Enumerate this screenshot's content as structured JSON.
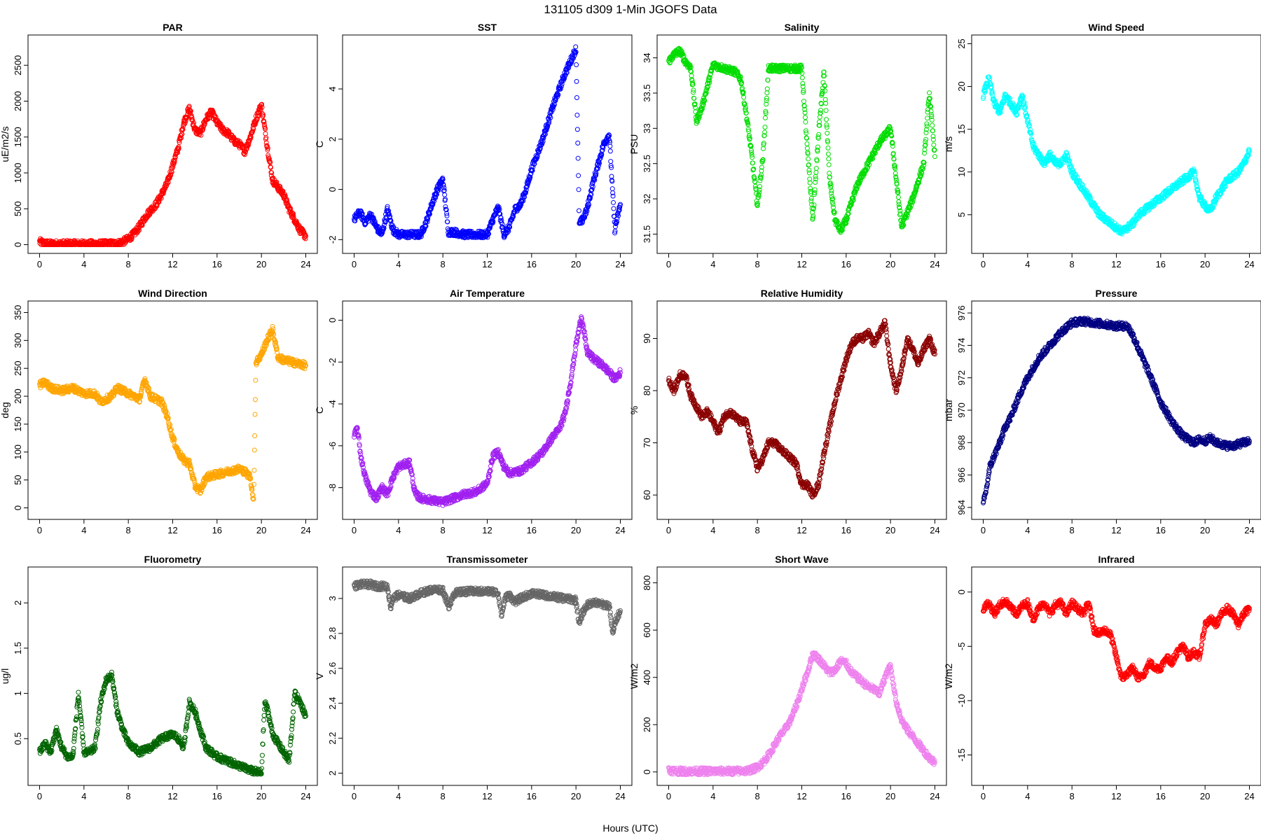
{
  "figure": {
    "title": "131105   d309   1-Min  JGOFS Data",
    "xlabel": "Hours (UTC)"
  },
  "chart_data": [
    {
      "type": "scatter",
      "title": "PAR",
      "ylabel": "uE/m2/s",
      "color": "#ff0000",
      "xlim": [
        0,
        24
      ],
      "ylim": [
        0,
        2800
      ],
      "xticks": [
        0,
        4,
        8,
        12,
        16,
        20,
        24
      ],
      "yticks": [
        0,
        500,
        1000,
        1500,
        2000,
        2500
      ],
      "x": [
        0,
        0.5,
        1,
        2,
        3,
        4,
        5,
        6,
        7,
        7.5,
        8,
        8.5,
        9,
        9.5,
        10,
        10.5,
        11,
        11.5,
        12,
        12.5,
        13,
        13.5,
        14,
        14.5,
        15,
        15.5,
        16,
        16.5,
        17,
        17.5,
        18,
        18.5,
        19,
        19.5,
        20,
        20.5,
        21,
        21.5,
        22,
        22.5,
        23,
        23.5,
        24
      ],
      "y": [
        40,
        15,
        10,
        10,
        10,
        10,
        10,
        10,
        15,
        40,
        80,
        150,
        250,
        380,
        480,
        560,
        700,
        850,
        1100,
        1350,
        1700,
        1900,
        1600,
        1550,
        1750,
        1850,
        1700,
        1600,
        1550,
        1450,
        1400,
        1300,
        1500,
        1750,
        1950,
        1400,
        900,
        800,
        700,
        500,
        350,
        200,
        120
      ]
    },
    {
      "type": "scatter",
      "title": "SST",
      "ylabel": "C",
      "color": "#0000ff",
      "xlim": [
        0,
        24
      ],
      "ylim": [
        -2.2,
        5.8
      ],
      "xticks": [
        0,
        4,
        8,
        12,
        16,
        20,
        24
      ],
      "yticks": [
        -2,
        0,
        2,
        4
      ],
      "x": [
        0,
        0.5,
        1,
        1.5,
        2,
        2.5,
        3,
        3.5,
        4,
        5,
        6,
        6.5,
        7,
        7.5,
        8,
        8.5,
        9,
        10,
        11,
        12,
        12.5,
        13,
        13.5,
        14,
        14.5,
        15,
        15.5,
        16,
        17,
        18,
        19,
        20,
        20.3,
        20.6,
        21,
        21.5,
        22,
        22.5,
        23,
        23.5,
        24
      ],
      "y": [
        -1.2,
        -0.9,
        -1.3,
        -1.0,
        -1.5,
        -1.8,
        -0.8,
        -1.6,
        -1.8,
        -1.8,
        -1.8,
        -1.3,
        -0.6,
        0.0,
        0.4,
        -1.7,
        -1.7,
        -1.8,
        -1.8,
        -1.8,
        -1.2,
        -0.7,
        -1.8,
        -1.5,
        -0.8,
        -0.6,
        0.0,
        0.8,
        2.0,
        3.4,
        4.6,
        5.6,
        -1.4,
        -1.2,
        -0.8,
        0.2,
        1.0,
        1.8,
        2.2,
        -1.6,
        -0.6
      ]
    },
    {
      "type": "scatter",
      "title": "Salinity",
      "ylabel": "PSU",
      "color": "#00dd00",
      "xlim": [
        0,
        24
      ],
      "ylim": [
        31.35,
        34.2
      ],
      "xticks": [
        0,
        4,
        8,
        12,
        16,
        20,
        24
      ],
      "yticks": [
        31.5,
        32.0,
        32.5,
        33.0,
        33.5,
        34.0
      ],
      "x": [
        0,
        0.5,
        1,
        1.5,
        2,
        2.5,
        3,
        3.5,
        4,
        5,
        6,
        6.5,
        7,
        7.5,
        8,
        8.5,
        9,
        10,
        11,
        12,
        12.5,
        13,
        13.5,
        14,
        14.5,
        15,
        15.5,
        16,
        17,
        18,
        19,
        20,
        20.5,
        21,
        21.5,
        22,
        23,
        23.5,
        24
      ],
      "y": [
        33.95,
        34.05,
        34.1,
        33.95,
        33.85,
        33.1,
        33.3,
        33.6,
        33.9,
        33.85,
        33.8,
        33.7,
        33.2,
        32.6,
        31.9,
        32.6,
        33.85,
        33.85,
        33.85,
        33.85,
        32.7,
        31.7,
        32.9,
        33.8,
        32.3,
        31.7,
        31.55,
        31.7,
        32.2,
        32.5,
        32.8,
        33.0,
        32.3,
        31.6,
        31.8,
        32.0,
        32.5,
        33.5,
        32.6
      ]
    },
    {
      "type": "scatter",
      "title": "Wind Speed",
      "ylabel": "m/s",
      "color": "#00ffff",
      "xlim": [
        0,
        24
      ],
      "ylim": [
        1.5,
        25
      ],
      "xticks": [
        0,
        4,
        8,
        12,
        16,
        20,
        24
      ],
      "yticks": [
        5,
        10,
        15,
        20,
        25
      ],
      "x": [
        0,
        0.5,
        1,
        1.5,
        2,
        2.5,
        3,
        3.5,
        4,
        4.5,
        5,
        5.5,
        6,
        6.5,
        7,
        7.5,
        8,
        8.5,
        9,
        9.5,
        10,
        10.5,
        11,
        11.5,
        12,
        12.5,
        13,
        13.5,
        14,
        15,
        16,
        17,
        18,
        18.5,
        19,
        19.5,
        20,
        20.5,
        21,
        21.5,
        22,
        22.5,
        23,
        23.5,
        24
      ],
      "y": [
        19,
        21,
        18,
        17,
        19,
        18,
        17,
        19,
        16,
        13,
        12,
        11,
        12,
        11,
        11,
        12,
        10,
        9,
        8,
        7,
        6,
        5,
        4.5,
        4,
        3.5,
        3,
        3.5,
        4,
        5,
        6,
        7,
        8,
        9,
        9.5,
        10,
        7,
        6,
        5.5,
        7,
        8,
        9,
        9.5,
        10,
        11,
        12.5
      ]
    },
    {
      "type": "scatter",
      "title": "Wind Direction",
      "ylabel": "deg",
      "color": "#ffa500",
      "xlim": [
        0,
        24
      ],
      "ylim": [
        -5,
        355
      ],
      "xticks": [
        0,
        4,
        8,
        12,
        16,
        20,
        24
      ],
      "yticks": [
        0,
        50,
        100,
        150,
        200,
        250,
        300,
        350
      ],
      "x": [
        0,
        0.5,
        1,
        2,
        3,
        4,
        5,
        5.5,
        6,
        6.5,
        7,
        7.5,
        8,
        8.5,
        9,
        9.5,
        10,
        10.5,
        11,
        11.5,
        12,
        12.5,
        13,
        13.5,
        14,
        14.5,
        15,
        16,
        17,
        18,
        18.5,
        19,
        19.3,
        19.5,
        20,
        20.5,
        21,
        21.5,
        22,
        23,
        24
      ],
      "y": [
        220,
        225,
        215,
        210,
        215,
        205,
        205,
        190,
        195,
        200,
        215,
        210,
        205,
        200,
        195,
        230,
        200,
        195,
        190,
        165,
        125,
        100,
        85,
        80,
        40,
        30,
        55,
        60,
        65,
        70,
        65,
        55,
        10,
        260,
        275,
        300,
        320,
        270,
        265,
        260,
        255
      ]
    },
    {
      "type": "scatter",
      "title": "Air Temperature",
      "ylabel": "C",
      "color": "#a020f0",
      "xlim": [
        0,
        24
      ],
      "ylim": [
        -9.1,
        0.5
      ],
      "xticks": [
        0,
        4,
        8,
        12,
        16,
        20,
        24
      ],
      "yticks": [
        -8,
        -6,
        -4,
        -2,
        0
      ],
      "x": [
        0,
        0.3,
        0.6,
        1,
        1.5,
        2,
        2.5,
        3,
        3.5,
        4,
        5,
        5.5,
        6,
        7,
        8,
        9,
        10,
        11,
        12,
        12.5,
        13,
        13.5,
        14,
        15,
        16,
        17,
        18,
        18.5,
        19,
        19.5,
        20,
        20.5,
        21,
        21.5,
        22,
        22.5,
        23,
        23.5,
        24
      ],
      "y": [
        -5.5,
        -5.2,
        -6.5,
        -7.5,
        -8.2,
        -8.5,
        -8.0,
        -8.3,
        -7.5,
        -7.0,
        -6.8,
        -8.3,
        -8.5,
        -8.6,
        -8.7,
        -8.5,
        -8.3,
        -8.2,
        -7.8,
        -6.5,
        -6.3,
        -7.0,
        -7.3,
        -7.2,
        -6.8,
        -6.3,
        -5.5,
        -5.2,
        -4.5,
        -3.0,
        -1.2,
        0.2,
        -1.5,
        -1.8,
        -2.0,
        -2.2,
        -2.5,
        -2.8,
        -2.5
      ]
    },
    {
      "type": "scatter",
      "title": "Relative Humidity",
      "ylabel": "%",
      "color": "#8b0000",
      "xlim": [
        0,
        24
      ],
      "ylim": [
        57,
        95.5
      ],
      "xticks": [
        0,
        4,
        8,
        12,
        16,
        20,
        24
      ],
      "yticks": [
        60,
        70,
        80,
        90
      ],
      "x": [
        0,
        0.5,
        1,
        1.5,
        2,
        2.5,
        3,
        3.5,
        4,
        4.5,
        5,
        5.5,
        6,
        6.5,
        7,
        7.5,
        8,
        8.5,
        9,
        9.5,
        10,
        10.5,
        11,
        11.5,
        12,
        12.5,
        13,
        13.5,
        14,
        14.5,
        15,
        15.5,
        16,
        16.5,
        17,
        17.5,
        18,
        18.5,
        19,
        19.5,
        20,
        20.5,
        21,
        21.5,
        22,
        22.5,
        23,
        23.5,
        24
      ],
      "y": [
        82,
        80,
        83,
        83,
        79,
        77,
        75,
        76,
        74,
        72,
        75,
        76,
        75,
        74,
        74,
        69,
        65,
        67,
        70,
        70,
        69,
        68,
        67,
        66,
        62,
        62,
        60,
        62,
        68,
        73,
        78,
        82,
        86,
        89,
        90,
        90,
        91,
        89,
        91,
        93,
        85,
        80,
        84,
        90,
        88,
        85,
        88,
        90,
        87
      ]
    },
    {
      "type": "scatter",
      "title": "Pressure",
      "ylabel": "mbar",
      "color": "#000080",
      "xlim": [
        0,
        24
      ],
      "ylim": [
        963.8,
        976.2
      ],
      "xticks": [
        0,
        4,
        8,
        12,
        16,
        20,
        24
      ],
      "yticks": [
        964,
        966,
        968,
        970,
        972,
        974,
        976
      ],
      "x": [
        0,
        0.3,
        0.6,
        1,
        1.5,
        2,
        2.5,
        3,
        3.5,
        4,
        5,
        6,
        7,
        8,
        9,
        10,
        11,
        12,
        12.5,
        13,
        13.5,
        14,
        15,
        16,
        17,
        18,
        19,
        19.5,
        20,
        20.5,
        21,
        21.5,
        22,
        22.5,
        23,
        23.5,
        24
      ],
      "y": [
        964.2,
        965.2,
        966.5,
        967.2,
        968.0,
        969.0,
        969.6,
        970.5,
        971.3,
        972.0,
        973.2,
        974.0,
        974.8,
        975.4,
        975.5,
        975.4,
        975.3,
        975.2,
        975.2,
        975.2,
        974.6,
        973.8,
        972.2,
        970.5,
        969.3,
        968.4,
        968.0,
        968.2,
        968.1,
        968.3,
        968.0,
        967.9,
        967.8,
        967.8,
        967.9,
        968.0,
        968.1
      ]
    },
    {
      "type": "scatter",
      "title": "Fluorometry",
      "ylabel": "ug/l",
      "color": "#006400",
      "xlim": [
        0,
        24
      ],
      "ylim": [
        0.08,
        2.3
      ],
      "xticks": [
        0,
        4,
        8,
        12,
        16,
        20,
        24
      ],
      "yticks": [
        0.5,
        1.0,
        1.5,
        2.0
      ],
      "x": [
        0,
        0.5,
        1,
        1.5,
        2,
        2.5,
        3,
        3.5,
        4,
        4.5,
        5,
        5.5,
        6,
        6.5,
        7,
        7.5,
        8,
        8.5,
        9,
        10,
        11,
        12,
        12.5,
        13,
        13.5,
        14,
        14.5,
        15,
        16,
        17,
        18,
        19,
        20,
        20.3,
        20.6,
        21,
        21.5,
        22,
        22.5,
        23,
        23.5,
        24
      ],
      "y": [
        0.35,
        0.45,
        0.35,
        0.6,
        0.4,
        0.3,
        0.3,
        1.0,
        0.35,
        0.35,
        0.4,
        0.9,
        1.15,
        1.2,
        0.8,
        0.6,
        0.45,
        0.4,
        0.35,
        0.4,
        0.5,
        0.55,
        0.5,
        0.4,
        0.9,
        0.8,
        0.6,
        0.4,
        0.3,
        0.25,
        0.2,
        0.15,
        0.12,
        0.9,
        0.8,
        0.55,
        0.45,
        0.35,
        0.25,
        1.0,
        0.9,
        0.75
      ]
    },
    {
      "type": "scatter",
      "title": "Transmissometer",
      "ylabel": "V",
      "color": "#666666",
      "xlim": [
        0,
        24
      ],
      "ylim": [
        1.98,
        3.13
      ],
      "xticks": [
        0,
        4,
        8,
        12,
        16,
        20,
        24
      ],
      "yticks": [
        2.0,
        2.2,
        2.4,
        2.6,
        2.8,
        3.0
      ],
      "x": [
        0,
        0.5,
        1,
        1.5,
        2,
        2.5,
        3,
        3.3,
        3.5,
        4,
        5,
        6,
        7,
        8,
        8.5,
        9,
        10,
        11,
        12,
        12.5,
        13,
        13.3,
        13.6,
        14,
        14.5,
        15,
        16,
        17,
        18,
        19,
        20,
        20.3,
        20.6,
        21,
        21.5,
        22,
        23,
        23.3,
        23.6,
        24
      ],
      "y": [
        3.07,
        3.08,
        3.08,
        3.08,
        3.07,
        3.07,
        3.07,
        2.95,
        3.0,
        3.02,
        3.0,
        3.03,
        3.05,
        3.05,
        2.95,
        3.03,
        3.04,
        3.04,
        3.04,
        3.04,
        3.03,
        2.9,
        3.0,
        3.02,
        2.98,
        3.0,
        3.03,
        3.02,
        3.01,
        3.0,
        2.99,
        2.85,
        2.92,
        2.96,
        2.98,
        2.97,
        2.96,
        2.8,
        2.88,
        2.93
      ]
    },
    {
      "type": "scatter",
      "title": "Short Wave",
      "ylabel": "W/m2",
      "color": "#ee82ee",
      "xlim": [
        0,
        24
      ],
      "ylim": [
        -20,
        830
      ],
      "xticks": [
        0,
        4,
        8,
        12,
        16,
        20,
        24
      ],
      "yticks": [
        0,
        200,
        400,
        600,
        800
      ],
      "x": [
        0,
        0.5,
        1,
        2,
        3,
        4,
        5,
        6,
        7,
        7.5,
        8,
        8.5,
        9,
        9.5,
        10,
        10.5,
        11,
        11.5,
        12,
        12.5,
        13,
        13.5,
        14,
        14.5,
        15,
        15.5,
        16,
        16.5,
        17,
        17.5,
        18,
        18.5,
        19,
        19.5,
        20,
        20.5,
        21,
        21.5,
        22,
        22.5,
        23,
        23.5,
        24
      ],
      "y": [
        8,
        5,
        3,
        3,
        3,
        3,
        3,
        3,
        5,
        10,
        20,
        40,
        70,
        110,
        150,
        180,
        220,
        280,
        350,
        420,
        500,
        480,
        450,
        420,
        430,
        470,
        460,
        420,
        400,
        380,
        360,
        350,
        330,
        400,
        450,
        300,
        220,
        180,
        150,
        120,
        90,
        60,
        40
      ]
    },
    {
      "type": "scatter",
      "title": "Infrared",
      "ylabel": "W/m2",
      "color": "#ff0000",
      "xlim": [
        0,
        24
      ],
      "ylim": [
        -17,
        1.5
      ],
      "xticks": [
        0,
        4,
        8,
        12,
        16,
        20,
        24
      ],
      "yticks": [
        -15,
        -10,
        -5,
        0
      ],
      "x": [
        0,
        0.5,
        1,
        1.5,
        2,
        2.5,
        3,
        3.5,
        4,
        4.5,
        5,
        5.5,
        6,
        6.5,
        7,
        7.5,
        8,
        8.5,
        9,
        9.5,
        10,
        10.5,
        11,
        11.5,
        12,
        12.5,
        13,
        13.5,
        14,
        14.5,
        15,
        15.5,
        16,
        16.5,
        17,
        17.5,
        18,
        18.5,
        19,
        19.5,
        20,
        20.5,
        21,
        21.5,
        22,
        22.5,
        23,
        23.5,
        24
      ],
      "y": [
        -1.5,
        -1.0,
        -2.0,
        -1.2,
        -0.8,
        -1.5,
        -2.0,
        -1.3,
        -1.0,
        -2.5,
        -1.5,
        -1.0,
        -2.0,
        -1.2,
        -1.0,
        -2.0,
        -1.0,
        -1.5,
        -2.0,
        -1.0,
        -3.5,
        -3.8,
        -3.5,
        -4.0,
        -6.0,
        -8.0,
        -7.5,
        -7.0,
        -8.0,
        -7.5,
        -6.5,
        -7.0,
        -7.0,
        -6.0,
        -6.5,
        -5.5,
        -5.0,
        -6.0,
        -5.5,
        -6.0,
        -3.0,
        -2.5,
        -3.0,
        -2.0,
        -1.5,
        -2.0,
        -3.0,
        -2.0,
        -1.5
      ]
    }
  ]
}
